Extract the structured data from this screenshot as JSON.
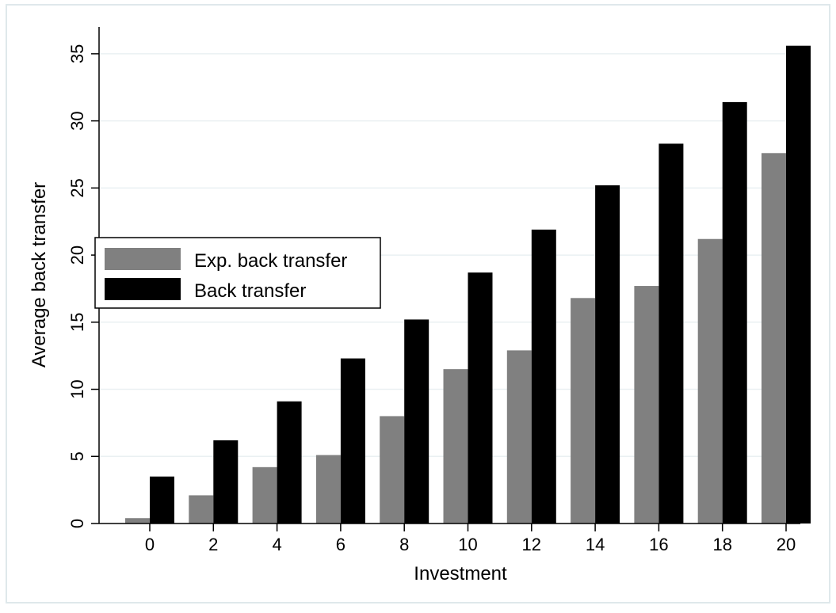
{
  "chart_data": {
    "type": "bar",
    "title": "",
    "xlabel": "Investment",
    "ylabel": "Average back transfer",
    "categories": [
      "0",
      "2",
      "4",
      "6",
      "8",
      "10",
      "12",
      "14",
      "16",
      "18",
      "20"
    ],
    "series": [
      {
        "name": "Exp. back transfer",
        "color": "#808080",
        "values": [
          0.4,
          2.1,
          4.2,
          5.1,
          8.0,
          11.5,
          12.9,
          16.8,
          17.7,
          21.2,
          27.6
        ]
      },
      {
        "name": "Back transfer",
        "color": "#000000",
        "values": [
          3.5,
          6.2,
          9.1,
          12.3,
          15.2,
          18.7,
          21.9,
          25.2,
          28.3,
          31.4,
          35.6
        ]
      }
    ],
    "ylim": [
      0,
      37
    ],
    "yticks": [
      0,
      5,
      10,
      15,
      20,
      25,
      30,
      35
    ],
    "grid": true,
    "legend_position": "left-middle",
    "colors": {
      "gridline": "#eaf0f2",
      "border": "#dfe8eb"
    }
  }
}
